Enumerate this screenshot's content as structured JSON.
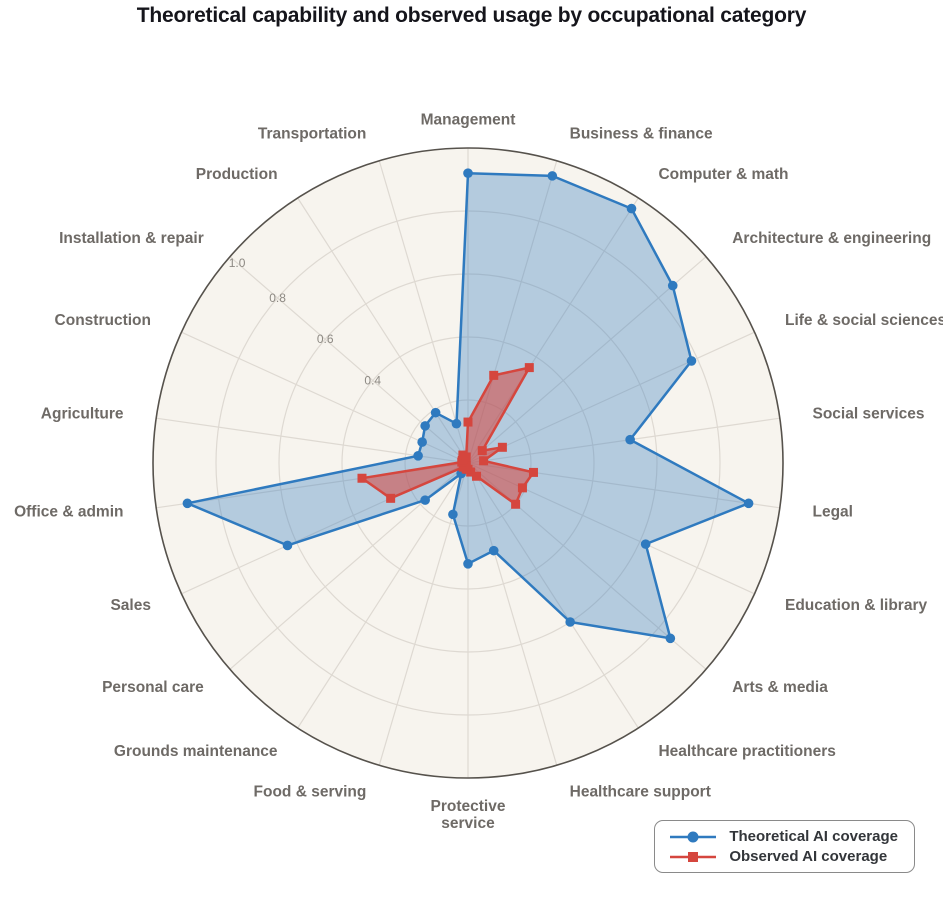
{
  "title": "Theoretical capability and observed usage by occupational category",
  "legend": {
    "items": [
      {
        "label": "Theoretical AI coverage",
        "marker": "circle",
        "color": "#2f7abf"
      },
      {
        "label": "Observed AI coverage",
        "marker": "square",
        "color": "#d5463e"
      }
    ]
  },
  "colors": {
    "plot_background": "#f7f4ee",
    "grid_line": "#ded9d2",
    "outer_ring": "#56524c",
    "category_label": "#6e6a66",
    "tick_label": "#8d8983",
    "title": "#15151b",
    "series_theoretical_line": "#2f7abf",
    "series_theoretical_fill": "rgba(47,122,191,0.33)",
    "series_observed_line": "#d5463e",
    "series_observed_fill": "rgba(213,70,62,0.55)"
  },
  "chart_data": {
    "type": "radar",
    "title": "Theoretical capability and observed usage by occupational category",
    "categories": [
      "Management",
      "Business & finance",
      "Computer & math",
      "Architecture & engineering",
      "Life & social sciences",
      "Social services",
      "Legal",
      "Education & library",
      "Arts & media",
      "Healthcare practitioners",
      "Healthcare support",
      "Protective service",
      "Food & serving",
      "Grounds maintenance",
      "Personal care",
      "Sales",
      "Office & admin",
      "Agriculture",
      "Construction",
      "Installation & repair",
      "Production",
      "Transportation"
    ],
    "series": [
      {
        "name": "Theoretical AI coverage",
        "marker": "circle",
        "values": [
          0.92,
          0.95,
          0.96,
          0.86,
          0.78,
          0.52,
          0.9,
          0.62,
          0.85,
          0.6,
          0.29,
          0.32,
          0.17,
          0.04,
          0.18,
          0.63,
          0.9,
          0.16,
          0.16,
          0.18,
          0.19,
          0.13
        ]
      },
      {
        "name": "Observed AI coverage",
        "marker": "square",
        "values": [
          0.13,
          0.29,
          0.36,
          0.06,
          0.12,
          0.05,
          0.21,
          0.19,
          0.2,
          0.05,
          0.03,
          0.02,
          0.02,
          0.01,
          0.02,
          0.27,
          0.34,
          0.02,
          0.02,
          0.02,
          0.03,
          0.02
        ]
      }
    ],
    "radial_ticks": [
      0.4,
      0.6,
      0.8,
      1.0
    ],
    "radial_range": [
      0,
      1.0
    ],
    "grid": true,
    "direction": "clockwise",
    "start_angle": "top",
    "legend_position": "bottom-right"
  }
}
